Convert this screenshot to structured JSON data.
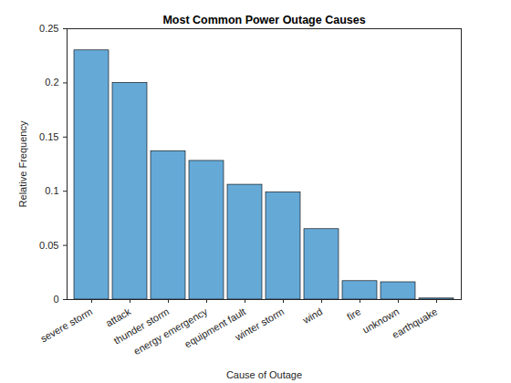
{
  "chart_data": {
    "type": "bar",
    "title": "Most Common Power Outage Causes",
    "x_label": "Cause of Outage",
    "y_label": "Relative Frequency",
    "categories": [
      "severe storm",
      "attack",
      "thunder storm",
      "energy emergency",
      "equipment fault",
      "winter storm",
      "wind",
      "fire",
      "unknown",
      "earthquake"
    ],
    "values": [
      0.23,
      0.2,
      0.137,
      0.128,
      0.106,
      0.099,
      0.065,
      0.017,
      0.016,
      0.001
    ],
    "color": "#65a9d7",
    "ylim": [
      0,
      0.25
    ],
    "yticks": [
      0,
      0.05,
      0.1,
      0.15,
      0.2,
      0.25
    ],
    "grid": false
  }
}
